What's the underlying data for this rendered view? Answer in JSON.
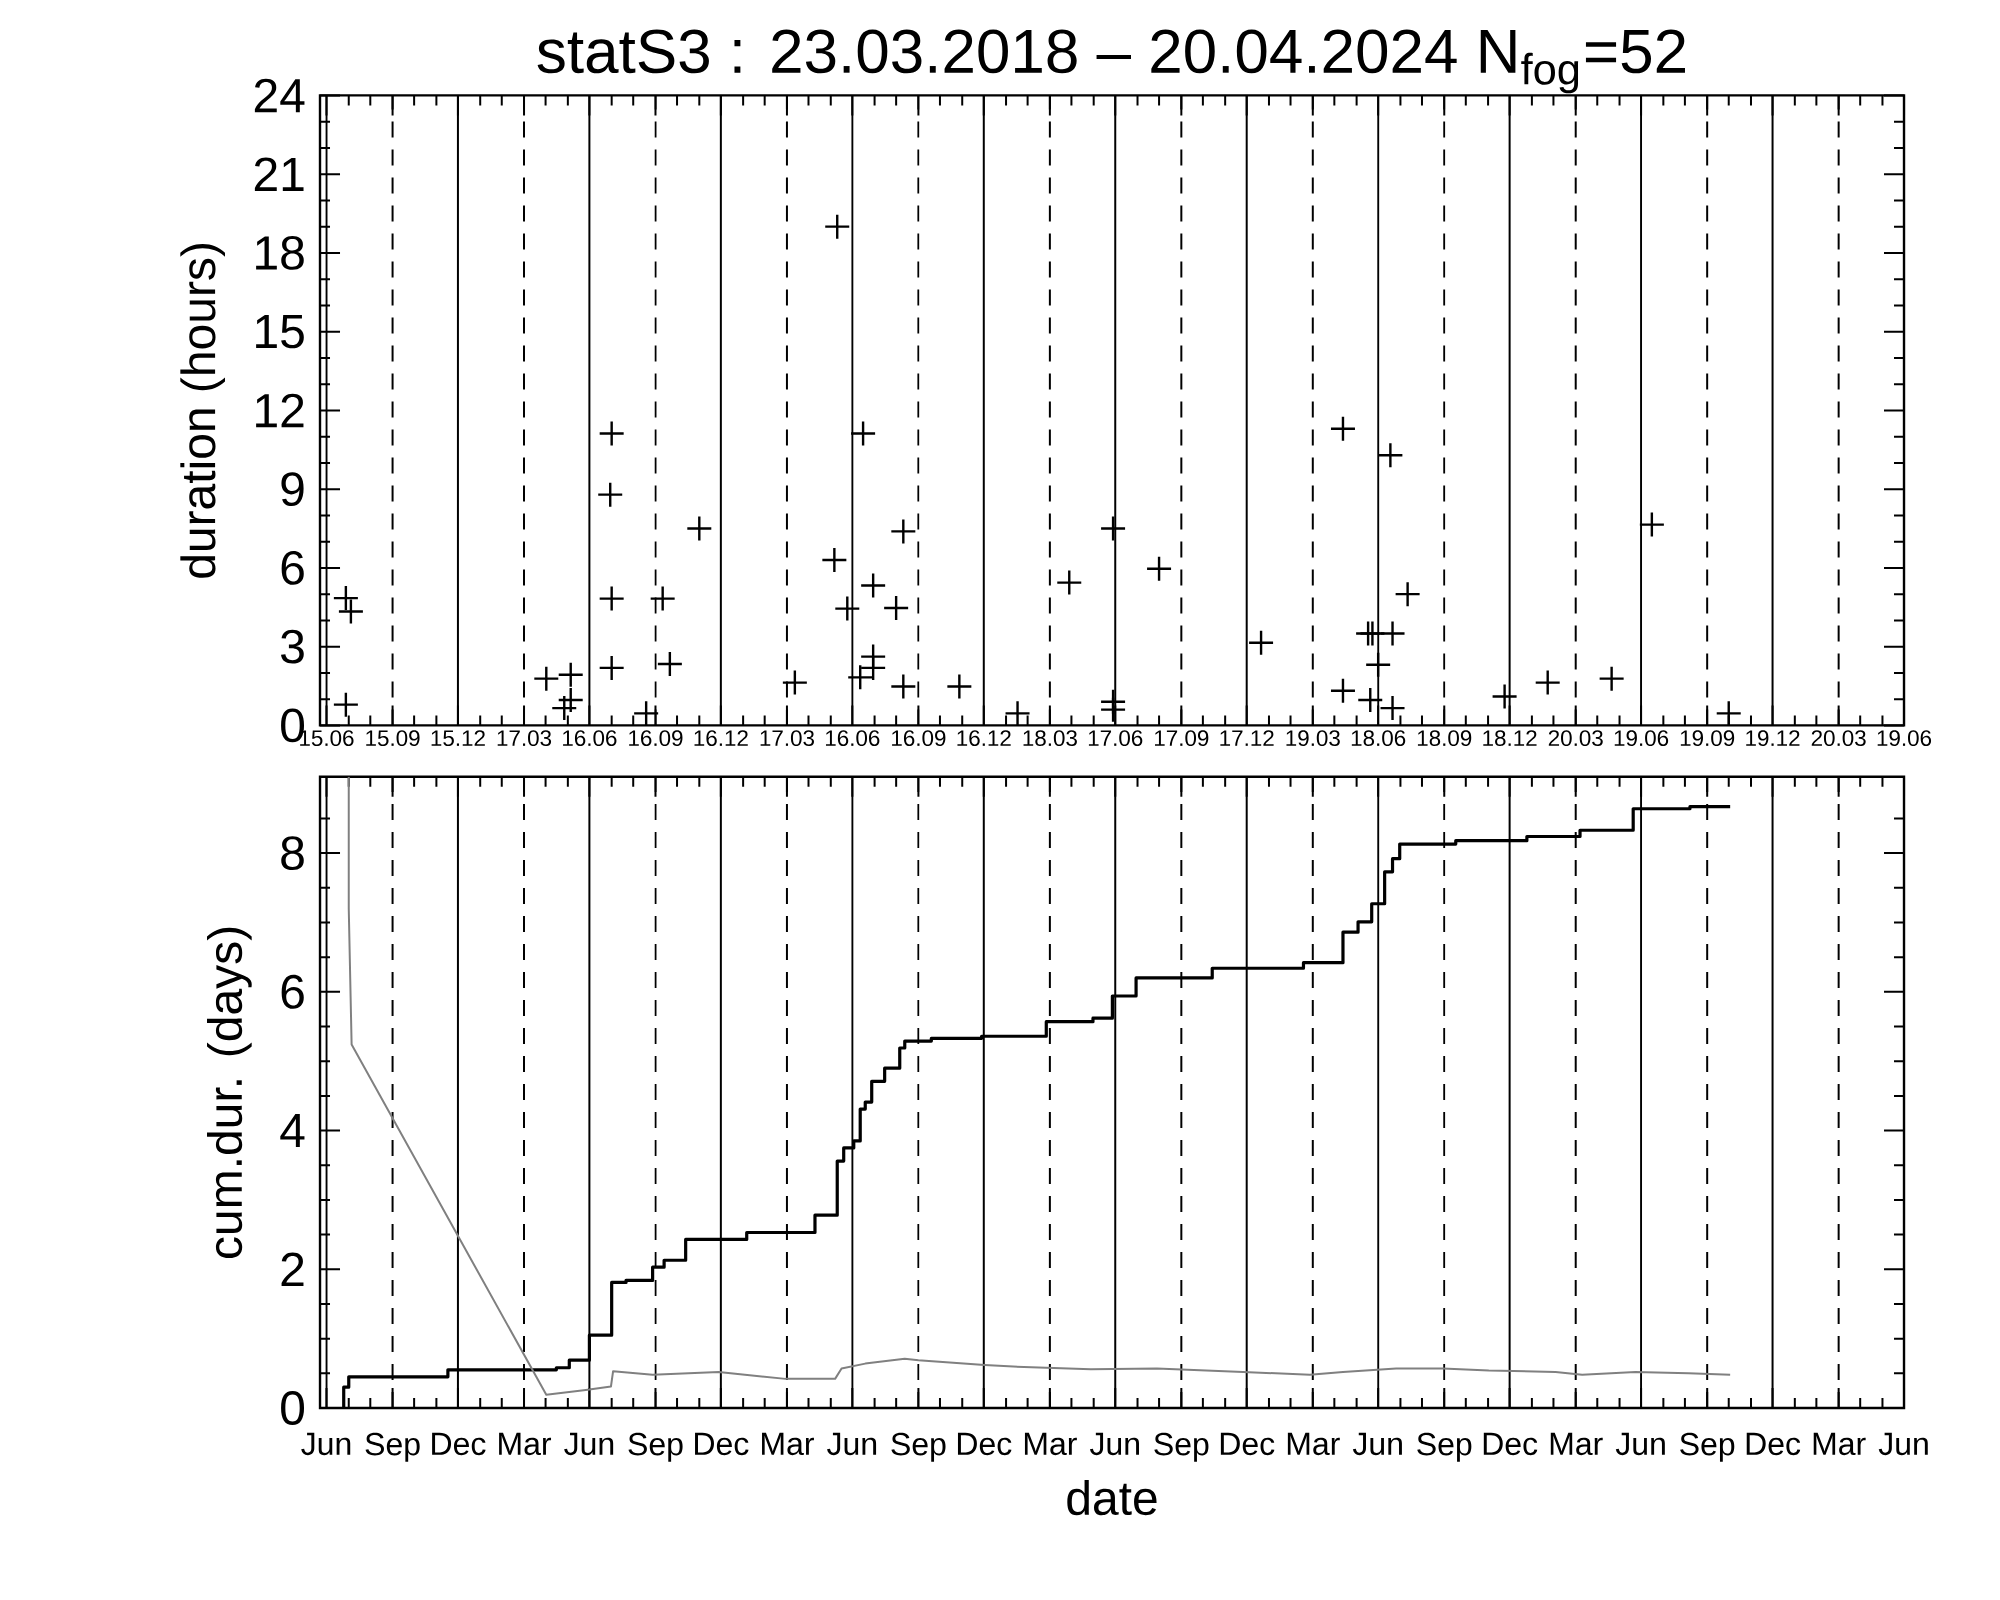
{
  "chart_data": [
    {
      "type": "scatter",
      "title": "statS3 : 23.03.2018 – 20.04.2024 N$_{fog}$=52",
      "ylabel": "duration (hours)",
      "color": "#000000",
      "marker": "cross",
      "x": [
        "2018-07-12",
        "2018-07-19",
        "2018-07-12",
        "2019-04-17",
        "2019-05-21",
        "2019-05-21",
        "2019-05-12",
        "2019-07-17",
        "2019-07-15",
        "2019-07-17",
        "2019-07-17",
        "2019-09-03",
        "2019-09-26",
        "2019-10-06",
        "2019-11-16",
        "2020-03-28",
        "2020-05-26",
        "2020-05-22",
        "2020-06-09",
        "2020-07-01",
        "2020-06-27",
        "2020-07-15",
        "2020-07-15",
        "2020-07-15",
        "2020-08-16",
        "2020-08-26",
        "2020-08-26",
        "2020-11-12",
        "2021-02-01",
        "2021-04-14",
        "2021-06-14",
        "2021-06-14",
        "2021-06-14",
        "2021-08-17",
        "2022-01-06",
        "2022-04-30",
        "2022-04-30",
        "2022-07-05",
        "2022-06-04",
        "2022-06-10",
        "2022-07-08",
        "2022-07-29",
        "2022-06-18",
        "2022-06-07",
        "2022-07-08",
        "2022-12-11",
        "2023-02-09",
        "2023-05-09",
        "2023-07-04",
        "2023-10-19"
      ],
      "values": [
        4.85,
        4.34,
        0.79,
        1.78,
        1.93,
        0.97,
        0.66,
        11.12,
        8.79,
        4.83,
        2.19,
        0.46,
        4.83,
        2.34,
        7.5,
        1.63,
        19.0,
        6.3,
        4.45,
        11.12,
        1.83,
        5.33,
        2.62,
        2.19,
        4.47,
        7.39,
        1.48,
        1.48,
        0.46,
        5.44,
        7.5,
        0.9,
        0.6,
        5.97,
        3.15,
        11.3,
        1.32,
        10.29,
        3.5,
        3.5,
        3.5,
        5.0,
        2.31,
        0.97,
        0.66,
        1.1,
        1.63,
        1.78,
        7.65,
        0.46
      ],
      "xlim": [
        "2018-06-06",
        "2024-06-19"
      ],
      "ylim": [
        0,
        24
      ],
      "xticks": [
        {
          "value": "2018-06-15",
          "label": "15.06"
        },
        {
          "value": "2018-07-16",
          "label": null
        },
        {
          "value": "2018-08-15",
          "label": null
        },
        {
          "value": "2018-09-15",
          "label": "15.09"
        },
        {
          "value": "2018-10-15",
          "label": null
        },
        {
          "value": "2018-11-15",
          "label": null
        },
        {
          "value": "2018-12-15",
          "label": "15.12"
        },
        {
          "value": "2019-01-15",
          "label": null
        },
        {
          "value": "2019-02-14",
          "label": null
        },
        {
          "value": "2019-03-17",
          "label": "17.03"
        },
        {
          "value": "2019-04-16",
          "label": null
        },
        {
          "value": "2019-05-17",
          "label": null
        },
        {
          "value": "2019-06-16",
          "label": "16.06"
        },
        {
          "value": "2019-07-17",
          "label": null
        },
        {
          "value": "2019-08-16",
          "label": null
        },
        {
          "value": "2019-09-16",
          "label": "16.09"
        },
        {
          "value": "2019-10-16",
          "label": null
        },
        {
          "value": "2019-11-16",
          "label": null
        },
        {
          "value": "2019-12-16",
          "label": "16.12"
        },
        {
          "value": "2020-01-16",
          "label": null
        },
        {
          "value": "2020-02-15",
          "label": null
        },
        {
          "value": "2020-03-17",
          "label": "17.03"
        },
        {
          "value": "2020-04-16",
          "label": null
        },
        {
          "value": "2020-05-17",
          "label": null
        },
        {
          "value": "2020-06-16",
          "label": "16.06"
        },
        {
          "value": "2020-07-17",
          "label": null
        },
        {
          "value": "2020-08-16",
          "label": null
        },
        {
          "value": "2020-09-16",
          "label": "16.09"
        },
        {
          "value": "2020-10-16",
          "label": null
        },
        {
          "value": "2020-11-16",
          "label": null
        },
        {
          "value": "2020-12-16",
          "label": "16.12"
        },
        {
          "value": "2021-01-16",
          "label": null
        },
        {
          "value": "2021-02-15",
          "label": null
        },
        {
          "value": "2021-03-18",
          "label": "18.03"
        },
        {
          "value": "2021-04-17",
          "label": null
        },
        {
          "value": "2021-05-18",
          "label": null
        },
        {
          "value": "2021-06-17",
          "label": "17.06"
        },
        {
          "value": "2021-07-18",
          "label": null
        },
        {
          "value": "2021-08-17",
          "label": null
        },
        {
          "value": "2021-09-17",
          "label": "17.09"
        },
        {
          "value": "2021-10-17",
          "label": null
        },
        {
          "value": "2021-11-17",
          "label": null
        },
        {
          "value": "2021-12-17",
          "label": "17.12"
        },
        {
          "value": "2022-01-17",
          "label": null
        },
        {
          "value": "2022-02-16",
          "label": null
        },
        {
          "value": "2022-03-19",
          "label": "19.03"
        },
        {
          "value": "2022-04-18",
          "label": null
        },
        {
          "value": "2022-05-19",
          "label": null
        },
        {
          "value": "2022-06-18",
          "label": "18.06"
        },
        {
          "value": "2022-07-19",
          "label": null
        },
        {
          "value": "2022-08-18",
          "label": null
        },
        {
          "value": "2022-09-18",
          "label": "18.09"
        },
        {
          "value": "2022-10-18",
          "label": null
        },
        {
          "value": "2022-11-18",
          "label": null
        },
        {
          "value": "2022-12-18",
          "label": "18.12"
        },
        {
          "value": "2023-01-18",
          "label": null
        },
        {
          "value": "2023-02-17",
          "label": null
        },
        {
          "value": "2023-03-20",
          "label": "20.03"
        },
        {
          "value": "2023-04-19",
          "label": null
        },
        {
          "value": "2023-05-20",
          "label": null
        },
        {
          "value": "2023-06-19",
          "label": "19.06"
        },
        {
          "value": "2023-07-20",
          "label": null
        },
        {
          "value": "2023-08-19",
          "label": null
        },
        {
          "value": "2023-09-19",
          "label": "19.09"
        },
        {
          "value": "2023-10-19",
          "label": null
        },
        {
          "value": "2023-11-19",
          "label": null
        },
        {
          "value": "2023-12-19",
          "label": "19.12"
        },
        {
          "value": "2024-01-19",
          "label": null
        },
        {
          "value": "2024-02-18",
          "label": null
        },
        {
          "value": "2024-03-20",
          "label": "20.03"
        },
        {
          "value": "2024-04-19",
          "label": null
        },
        {
          "value": "2024-05-20",
          "label": null
        },
        {
          "value": "2024-06-19",
          "label": "19.06"
        }
      ],
      "yticks": [
        0,
        {
          "value": 1,
          "label": null
        },
        {
          "value": 2,
          "label": null
        },
        3,
        {
          "value": 4,
          "label": null
        },
        {
          "value": 5,
          "label": null
        },
        6,
        {
          "value": 7,
          "label": null
        },
        {
          "value": 8,
          "label": null
        },
        9,
        {
          "value": 10,
          "label": null
        },
        {
          "value": 11,
          "label": null
        },
        12,
        {
          "value": 13,
          "label": null
        },
        {
          "value": 14,
          "label": null
        },
        15,
        {
          "value": 16,
          "label": null
        },
        {
          "value": 17,
          "label": null
        },
        18,
        {
          "value": 19,
          "label": null
        },
        {
          "value": 20,
          "label": null
        },
        21,
        {
          "value": 22,
          "label": null
        },
        {
          "value": 23,
          "label": null
        },
        24
      ],
      "ref_lines": [
        {
          "axis": "x",
          "value": "2018-06-15",
          "line_style": "solid"
        },
        {
          "axis": "x",
          "value": "2018-09-15",
          "line_style": "dashed"
        },
        {
          "axis": "x",
          "value": "2018-12-15",
          "line_style": "solid"
        },
        {
          "axis": "x",
          "value": "2019-03-17",
          "line_style": "dashed"
        },
        {
          "axis": "x",
          "value": "2019-06-16",
          "line_style": "solid"
        },
        {
          "axis": "x",
          "value": "2019-09-16",
          "line_style": "dashed"
        },
        {
          "axis": "x",
          "value": "2019-12-16",
          "line_style": "solid"
        },
        {
          "axis": "x",
          "value": "2020-03-17",
          "line_style": "dashed"
        },
        {
          "axis": "x",
          "value": "2020-06-16",
          "line_style": "solid"
        },
        {
          "axis": "x",
          "value": "2020-09-16",
          "line_style": "dashed"
        },
        {
          "axis": "x",
          "value": "2020-12-16",
          "line_style": "solid"
        },
        {
          "axis": "x",
          "value": "2021-03-18",
          "line_style": "dashed"
        },
        {
          "axis": "x",
          "value": "2021-06-17",
          "line_style": "solid"
        },
        {
          "axis": "x",
          "value": "2021-09-17",
          "line_style": "dashed"
        },
        {
          "axis": "x",
          "value": "2021-12-17",
          "line_style": "solid"
        },
        {
          "axis": "x",
          "value": "2022-03-19",
          "line_style": "dashed"
        },
        {
          "axis": "x",
          "value": "2022-06-18",
          "line_style": "solid"
        },
        {
          "axis": "x",
          "value": "2022-09-18",
          "line_style": "dashed"
        },
        {
          "axis": "x",
          "value": "2022-12-18",
          "line_style": "solid"
        },
        {
          "axis": "x",
          "value": "2023-03-20",
          "line_style": "dashed"
        },
        {
          "axis": "x",
          "value": "2023-06-19",
          "line_style": "solid"
        },
        {
          "axis": "x",
          "value": "2023-09-19",
          "line_style": "dashed"
        },
        {
          "axis": "x",
          "value": "2023-12-19",
          "line_style": "solid"
        },
        {
          "axis": "x",
          "value": "2024-03-20",
          "line_style": "dashed"
        }
      ]
    },
    {
      "type": "line",
      "xlabel": "date",
      "ylabel": "cum.dur. (days)",
      "series": [
        {
          "type": "step",
          "color": "#000000",
          "x": [
            "2018-07-09",
            "2018-07-09",
            "2018-07-16",
            "2018-12-01",
            "2019-05-01",
            "2019-05-19",
            "2019-06-16",
            "2019-07-17",
            "2019-08-06",
            "2019-09-12",
            "2019-09-28",
            "2019-10-28",
            "2020-01-21",
            "2020-04-25",
            "2020-05-26",
            "2020-06-04",
            "2020-06-18",
            "2020-06-27",
            "2020-07-04",
            "2020-07-13",
            "2020-07-31",
            "2020-08-21",
            "2020-08-28",
            "2020-10-04",
            "2020-12-13",
            "2021-03-13",
            "2021-05-17",
            "2021-06-13",
            "2021-07-16",
            "2021-10-30",
            "2022-03-06",
            "2022-04-30",
            "2022-05-21",
            "2022-06-09",
            "2022-06-27",
            "2022-07-08",
            "2022-07-18",
            "2022-10-04",
            "2023-01-11",
            "2023-03-26",
            "2023-06-08",
            "2023-08-26",
            "2023-10-21"
          ],
          "values": [
            0,
            0.3,
            0.45,
            0.55,
            0.58,
            0.69,
            1.05,
            1.81,
            1.84,
            2.03,
            2.13,
            2.43,
            2.53,
            2.78,
            3.56,
            3.75,
            3.85,
            4.31,
            4.41,
            4.71,
            4.9,
            5.19,
            5.29,
            5.33,
            5.36,
            5.57,
            5.62,
            5.94,
            6.2,
            6.34,
            6.42,
            6.86,
            7.01,
            7.27,
            7.73,
            7.92,
            8.13,
            8.18,
            8.24,
            8.33,
            8.64,
            8.67,
            8.67
          ]
        },
        {
          "type": "line",
          "color": "#808080",
          "x": [
            "2018-07-16",
            "2018-07-16",
            "2018-07-20",
            "2019-04-17",
            "2019-06-11",
            "2019-07-16",
            "2019-07-19",
            "2019-09-12",
            "2019-12-13",
            "2020-03-15",
            "2020-05-23",
            "2020-06-01",
            "2020-07-04",
            "2020-08-28",
            "2020-09-16",
            "2020-12-17",
            "2021-02-10",
            "2021-05-14",
            "2021-08-14",
            "2021-12-12",
            "2022-03-15",
            "2022-04-30",
            "2022-07-13",
            "2022-09-16",
            "2022-11-19",
            "2023-02-20",
            "2023-03-29",
            "2023-06-11",
            "2023-08-24",
            "2023-10-21"
          ],
          "values": [
            9.1,
            7.2,
            5.24,
            0.19,
            0.26,
            0.31,
            0.53,
            0.48,
            0.52,
            0.42,
            0.42,
            0.57,
            0.64,
            0.71,
            0.69,
            0.62,
            0.59,
            0.56,
            0.57,
            0.52,
            0.48,
            0.52,
            0.57,
            0.57,
            0.54,
            0.52,
            0.48,
            0.52,
            0.5,
            0.48
          ]
        }
      ],
      "xlim": [
        "2018-06-06",
        "2024-06-19"
      ],
      "ylim": [
        0,
        9.1
      ],
      "xticks": [
        {
          "value": "2018-06-15",
          "label": "Jun"
        },
        {
          "value": "2018-07-16",
          "label": null
        },
        {
          "value": "2018-08-15",
          "label": null
        },
        {
          "value": "2018-09-15",
          "label": "Sep"
        },
        {
          "value": "2018-10-15",
          "label": null
        },
        {
          "value": "2018-11-15",
          "label": null
        },
        {
          "value": "2018-12-15",
          "label": "Dec"
        },
        {
          "value": "2019-01-15",
          "label": null
        },
        {
          "value": "2019-02-14",
          "label": null
        },
        {
          "value": "2019-03-17",
          "label": "Mar"
        },
        {
          "value": "2019-04-16",
          "label": null
        },
        {
          "value": "2019-05-17",
          "label": null
        },
        {
          "value": "2019-06-16",
          "label": "Jun"
        },
        {
          "value": "2019-07-17",
          "label": null
        },
        {
          "value": "2019-08-16",
          "label": null
        },
        {
          "value": "2019-09-16",
          "label": "Sep"
        },
        {
          "value": "2019-10-16",
          "label": null
        },
        {
          "value": "2019-11-16",
          "label": null
        },
        {
          "value": "2019-12-16",
          "label": "Dec"
        },
        {
          "value": "2020-01-16",
          "label": null
        },
        {
          "value": "2020-02-15",
          "label": null
        },
        {
          "value": "2020-03-17",
          "label": "Mar"
        },
        {
          "value": "2020-04-16",
          "label": null
        },
        {
          "value": "2020-05-17",
          "label": null
        },
        {
          "value": "2020-06-16",
          "label": "Jun"
        },
        {
          "value": "2020-07-17",
          "label": null
        },
        {
          "value": "2020-08-16",
          "label": null
        },
        {
          "value": "2020-09-16",
          "label": "Sep"
        },
        {
          "value": "2020-10-16",
          "label": null
        },
        {
          "value": "2020-11-16",
          "label": null
        },
        {
          "value": "2020-12-16",
          "label": "Dec"
        },
        {
          "value": "2021-01-16",
          "label": null
        },
        {
          "value": "2021-02-15",
          "label": null
        },
        {
          "value": "2021-03-18",
          "label": "Mar"
        },
        {
          "value": "2021-04-17",
          "label": null
        },
        {
          "value": "2021-05-18",
          "label": null
        },
        {
          "value": "2021-06-17",
          "label": "Jun"
        },
        {
          "value": "2021-07-18",
          "label": null
        },
        {
          "value": "2021-08-17",
          "label": null
        },
        {
          "value": "2021-09-17",
          "label": "Sep"
        },
        {
          "value": "2021-10-17",
          "label": null
        },
        {
          "value": "2021-11-17",
          "label": null
        },
        {
          "value": "2021-12-17",
          "label": "Dec"
        },
        {
          "value": "2022-01-17",
          "label": null
        },
        {
          "value": "2022-02-16",
          "label": null
        },
        {
          "value": "2022-03-19",
          "label": "Mar"
        },
        {
          "value": "2022-04-18",
          "label": null
        },
        {
          "value": "2022-05-19",
          "label": null
        },
        {
          "value": "2022-06-18",
          "label": "Jun"
        },
        {
          "value": "2022-07-19",
          "label": null
        },
        {
          "value": "2022-08-18",
          "label": null
        },
        {
          "value": "2022-09-18",
          "label": "Sep"
        },
        {
          "value": "2022-10-18",
          "label": null
        },
        {
          "value": "2022-11-18",
          "label": null
        },
        {
          "value": "2022-12-18",
          "label": "Dec"
        },
        {
          "value": "2023-01-18",
          "label": null
        },
        {
          "value": "2023-02-17",
          "label": null
        },
        {
          "value": "2023-03-20",
          "label": "Mar"
        },
        {
          "value": "2023-04-19",
          "label": null
        },
        {
          "value": "2023-05-20",
          "label": null
        },
        {
          "value": "2023-06-19",
          "label": "Jun"
        },
        {
          "value": "2023-07-20",
          "label": null
        },
        {
          "value": "2023-08-19",
          "label": null
        },
        {
          "value": "2023-09-19",
          "label": "Sep"
        },
        {
          "value": "2023-10-19",
          "label": null
        },
        {
          "value": "2023-11-19",
          "label": null
        },
        {
          "value": "2023-12-19",
          "label": "Dec"
        },
        {
          "value": "2024-01-19",
          "label": null
        },
        {
          "value": "2024-02-18",
          "label": null
        },
        {
          "value": "2024-03-20",
          "label": "Mar"
        },
        {
          "value": "2024-04-19",
          "label": null
        },
        {
          "value": "2024-05-20",
          "label": null
        },
        {
          "value": "2024-06-19",
          "label": "Jun"
        }
      ],
      "yticks": [
        0,
        {
          "value": 0.5,
          "label": null
        },
        {
          "value": 1,
          "label": null
        },
        {
          "value": 1.5,
          "label": null
        },
        2,
        {
          "value": 2.5,
          "label": null
        },
        {
          "value": 3,
          "label": null
        },
        {
          "value": 3.5,
          "label": null
        },
        4,
        {
          "value": 4.5,
          "label": null
        },
        {
          "value": 5,
          "label": null
        },
        {
          "value": 5.5,
          "label": null
        },
        6,
        {
          "value": 6.5,
          "label": null
        },
        {
          "value": 7,
          "label": null
        },
        {
          "value": 7.5,
          "label": null
        },
        8,
        {
          "value": 8.5,
          "label": null
        }
      ],
      "ref_lines": [
        {
          "axis": "x",
          "value": "2018-06-15",
          "line_style": "solid"
        },
        {
          "axis": "x",
          "value": "2018-09-15",
          "line_style": "dashed"
        },
        {
          "axis": "x",
          "value": "2018-12-15",
          "line_style": "solid"
        },
        {
          "axis": "x",
          "value": "2019-03-17",
          "line_style": "dashed"
        },
        {
          "axis": "x",
          "value": "2019-06-16",
          "line_style": "solid"
        },
        {
          "axis": "x",
          "value": "2019-09-16",
          "line_style": "dashed"
        },
        {
          "axis": "x",
          "value": "2019-12-16",
          "line_style": "solid"
        },
        {
          "axis": "x",
          "value": "2020-03-17",
          "line_style": "dashed"
        },
        {
          "axis": "x",
          "value": "2020-06-16",
          "line_style": "solid"
        },
        {
          "axis": "x",
          "value": "2020-09-16",
          "line_style": "dashed"
        },
        {
          "axis": "x",
          "value": "2020-12-16",
          "line_style": "solid"
        },
        {
          "axis": "x",
          "value": "2021-03-18",
          "line_style": "dashed"
        },
        {
          "axis": "x",
          "value": "2021-06-17",
          "line_style": "solid"
        },
        {
          "axis": "x",
          "value": "2021-09-17",
          "line_style": "dashed"
        },
        {
          "axis": "x",
          "value": "2021-12-17",
          "line_style": "solid"
        },
        {
          "axis": "x",
          "value": "2022-03-19",
          "line_style": "dashed"
        },
        {
          "axis": "x",
          "value": "2022-06-18",
          "line_style": "solid"
        },
        {
          "axis": "x",
          "value": "2022-09-18",
          "line_style": "dashed"
        },
        {
          "axis": "x",
          "value": "2022-12-18",
          "line_style": "solid"
        },
        {
          "axis": "x",
          "value": "2023-03-20",
          "line_style": "dashed"
        },
        {
          "axis": "x",
          "value": "2023-06-19",
          "line_style": "solid"
        },
        {
          "axis": "x",
          "value": "2023-09-19",
          "line_style": "dashed"
        },
        {
          "axis": "x",
          "value": "2023-12-19",
          "line_style": "solid"
        },
        {
          "axis": "x",
          "value": "2024-03-20",
          "line_style": "dashed"
        }
      ]
    }
  ]
}
